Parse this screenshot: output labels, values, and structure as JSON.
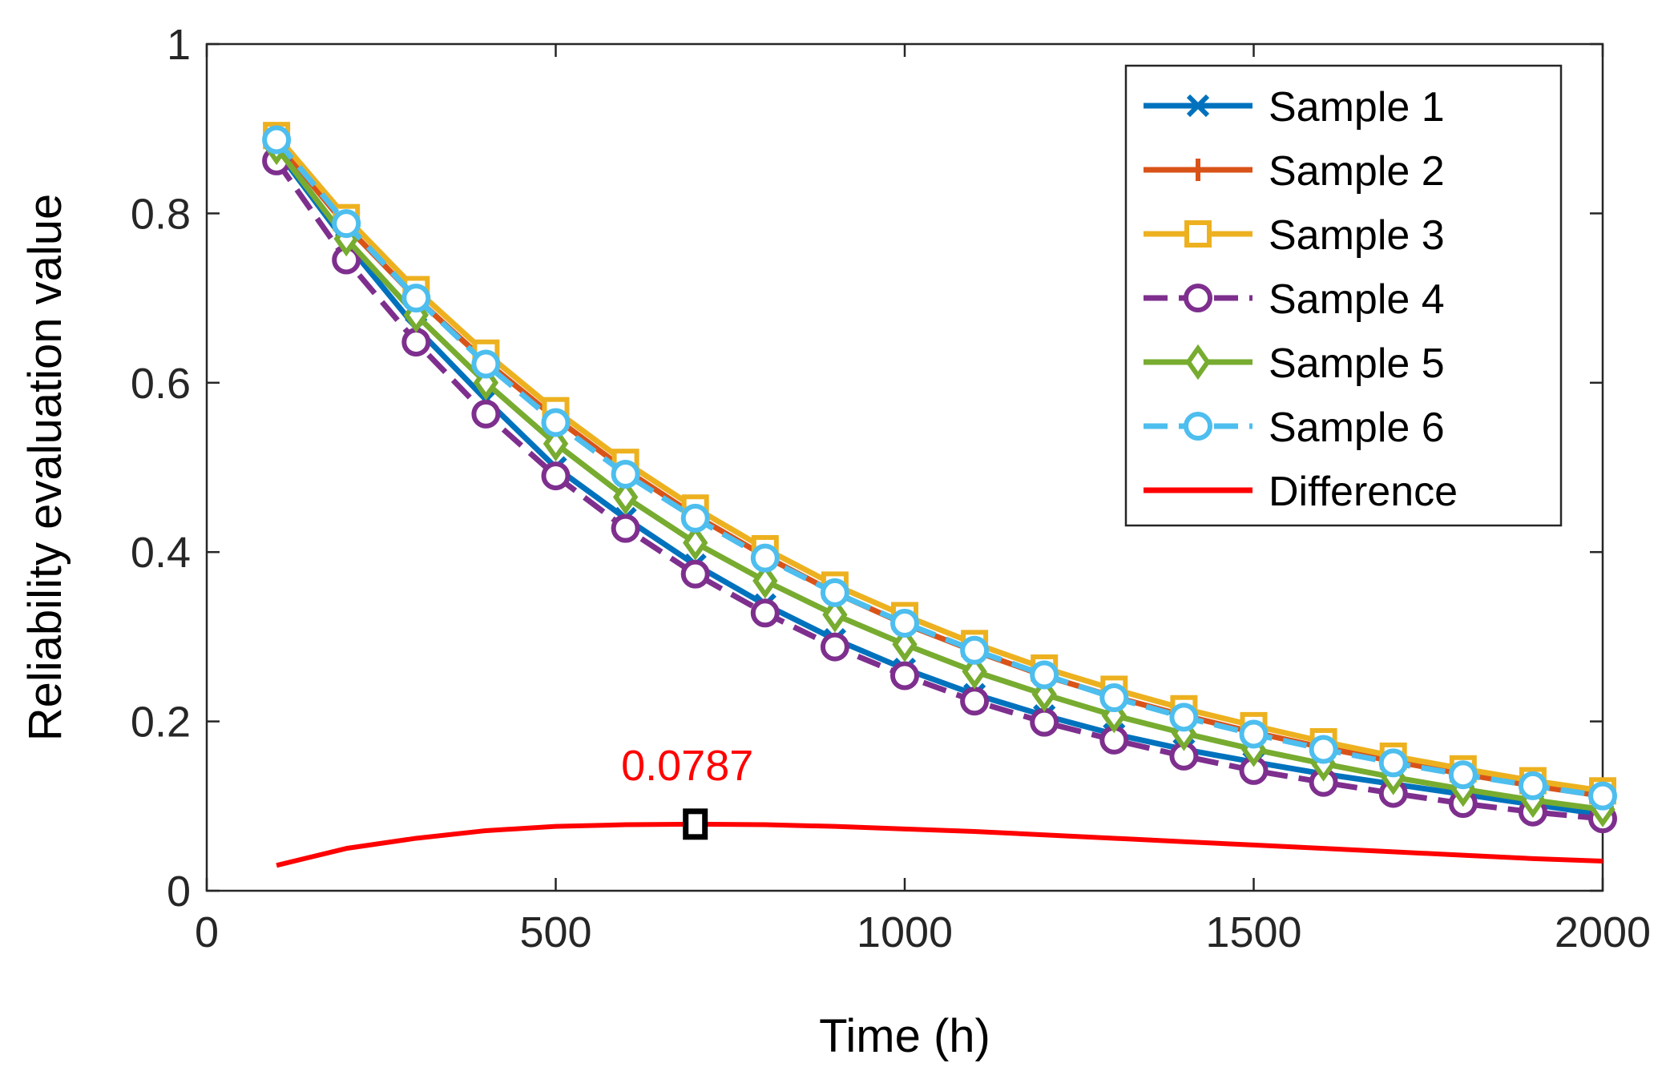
{
  "chart_data": {
    "type": "line",
    "xlabel": "Time (h)",
    "ylabel": "Reliability evaluation value",
    "xlim": [
      0,
      2000
    ],
    "ylim": [
      0,
      1
    ],
    "xticks": [
      0,
      500,
      1000,
      1500,
      2000
    ],
    "xtick_labels": [
      "0",
      "500",
      "1000",
      "1500",
      "2000"
    ],
    "yticks": [
      0,
      0.2,
      0.4,
      0.6,
      0.8,
      1
    ],
    "ytick_labels": [
      "0",
      "0.2",
      "0.4",
      "0.6",
      "0.8",
      "1"
    ],
    "grid": false,
    "legend_position": "top-right",
    "x": [
      100,
      200,
      300,
      400,
      500,
      600,
      700,
      800,
      900,
      1000,
      1100,
      1200,
      1300,
      1400,
      1500,
      1600,
      1700,
      1800,
      1900,
      2000
    ],
    "series": [
      {
        "name": "Sample 1",
        "color": "#0072BD",
        "marker": "x",
        "dashed": false,
        "values": [
          0.875,
          0.765,
          0.665,
          0.58,
          0.5,
          0.44,
          0.385,
          0.338,
          0.297,
          0.262,
          0.232,
          0.207,
          0.185,
          0.167,
          0.152,
          0.138,
          0.126,
          0.114,
          0.102,
          0.09
        ]
      },
      {
        "name": "Sample 2",
        "color": "#D95319",
        "marker": "plus",
        "dashed": false,
        "values": [
          0.885,
          0.785,
          0.7,
          0.625,
          0.558,
          0.497,
          0.443,
          0.395,
          0.352,
          0.315,
          0.283,
          0.254,
          0.229,
          0.207,
          0.187,
          0.169,
          0.153,
          0.138,
          0.124,
          0.112
        ]
      },
      {
        "name": "Sample 3",
        "color": "#EDB120",
        "marker": "square",
        "dashed": false,
        "values": [
          0.892,
          0.795,
          0.71,
          0.635,
          0.567,
          0.506,
          0.452,
          0.404,
          0.361,
          0.325,
          0.292,
          0.263,
          0.238,
          0.215,
          0.195,
          0.176,
          0.159,
          0.144,
          0.13,
          0.118
        ]
      },
      {
        "name": "Sample 4",
        "color": "#7E2F8E",
        "marker": "circle",
        "dashed": true,
        "values": [
          0.862,
          0.745,
          0.648,
          0.563,
          0.49,
          0.428,
          0.374,
          0.328,
          0.288,
          0.254,
          0.224,
          0.199,
          0.178,
          0.159,
          0.142,
          0.128,
          0.115,
          0.103,
          0.093,
          0.085
        ]
      },
      {
        "name": "Sample 5",
        "color": "#77AC30",
        "marker": "diamond",
        "dashed": false,
        "values": [
          0.878,
          0.77,
          0.68,
          0.6,
          0.528,
          0.465,
          0.411,
          0.366,
          0.326,
          0.291,
          0.259,
          0.232,
          0.207,
          0.186,
          0.167,
          0.15,
          0.134,
          0.12,
          0.107,
          0.096
        ]
      },
      {
        "name": "Sample 6",
        "color": "#4DBEEE",
        "marker": "circle",
        "dashed": true,
        "values": [
          0.887,
          0.788,
          0.7,
          0.622,
          0.553,
          0.492,
          0.44,
          0.393,
          0.352,
          0.316,
          0.284,
          0.255,
          0.228,
          0.205,
          0.185,
          0.167,
          0.151,
          0.137,
          0.124,
          0.112
        ]
      },
      {
        "name": "Difference",
        "color": "#FF0000",
        "marker": "none",
        "dashed": false,
        "values": [
          0.03,
          0.05,
          0.062,
          0.071,
          0.076,
          0.078,
          0.0787,
          0.078,
          0.076,
          0.073,
          0.07,
          0.066,
          0.062,
          0.058,
          0.054,
          0.05,
          0.046,
          0.042,
          0.038,
          0.035
        ]
      }
    ],
    "annotation": {
      "text": "0.0787",
      "x": 700,
      "y": 0.0787,
      "color": "#FF0000"
    }
  }
}
